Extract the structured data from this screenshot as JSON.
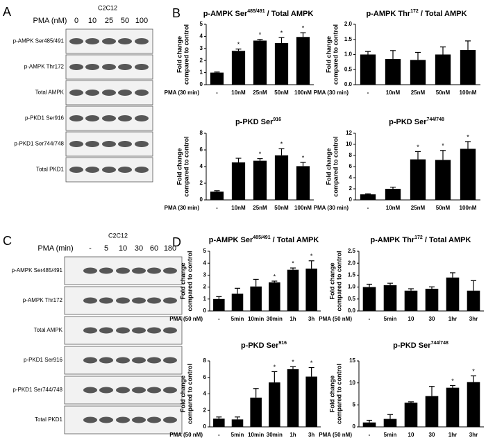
{
  "panels": {
    "a": "A",
    "b": "B",
    "c": "C",
    "d": "D"
  },
  "blots": [
    {
      "cell": "C2C12",
      "treatment": "PMA (nM)",
      "lanes": [
        "0",
        "10",
        "25",
        "50",
        "100"
      ],
      "rows": [
        "p-AMPK Ser485/491",
        "p-AMPK Thr172",
        "Total AMPK",
        "p-PKD1 Ser916",
        "p-PKD1 Ser744/748",
        "Total PKD1"
      ]
    },
    {
      "cell": "C2C12",
      "treatment": "PMA (min)",
      "lanes": [
        "-",
        "5",
        "10",
        "30",
        "60",
        "180"
      ],
      "rows": [
        "p-AMPK Ser485/491",
        "p-AMPK Thr172",
        "Total AMPK",
        "p-PKD1 Ser916",
        "p-PKD1 Ser744/748",
        "Total PKD1"
      ]
    }
  ],
  "chart_data": [
    {
      "type": "bar",
      "title": [
        "p-AMPK Ser",
        "485/491",
        " / Total AMPK"
      ],
      "ylabel": [
        "Fold change",
        "compared to control"
      ],
      "xlabel": "PMA (30 min)",
      "categories": [
        "-",
        "10nM",
        "25nM",
        "50nM",
        "100nM"
      ],
      "values": [
        1.0,
        2.8,
        3.65,
        3.45,
        3.95
      ],
      "errors": [
        0.05,
        0.15,
        0.1,
        0.45,
        0.35
      ],
      "stars": [
        null,
        "*",
        "*",
        "*",
        "*"
      ],
      "color": "#000000",
      "ylim": [
        0,
        5
      ],
      "yticks": [
        0,
        1,
        2,
        3,
        4,
        5
      ]
    },
    {
      "type": "bar",
      "title": [
        "p-AMPK Thr",
        "172",
        " / Total AMPK"
      ],
      "ylabel": [
        "Fold change",
        "compared to control"
      ],
      "xlabel": "PMA (30 min)",
      "categories": [
        "-",
        "10nM",
        "25nM",
        "50nM",
        "100nM"
      ],
      "values": [
        1.0,
        0.85,
        0.82,
        1.0,
        1.15
      ],
      "errors": [
        0.1,
        0.28,
        0.25,
        0.25,
        0.3
      ],
      "color": "#000000",
      "ylim": [
        0,
        2
      ],
      "yticks": [
        {
          "value": 0,
          "label": "0.0"
        },
        0.5,
        {
          "value": 1,
          "label": "1.0"
        },
        1.5,
        {
          "value": 2,
          "label": "2.0"
        }
      ]
    },
    {
      "type": "bar",
      "title": [
        "p-PKD Ser",
        "916"
      ],
      "ylabel": [
        "Fold change",
        "compared to control"
      ],
      "xlabel": "PMA (30 min)",
      "categories": [
        "-",
        "10nM",
        "25nM",
        "50nM",
        "100nM"
      ],
      "values": [
        1.0,
        4.5,
        4.7,
        5.35,
        4.05
      ],
      "errors": [
        0.1,
        0.5,
        0.25,
        0.8,
        0.45
      ],
      "stars": [
        null,
        null,
        "*",
        "*",
        "*"
      ],
      "color": "#000000",
      "ylim": [
        0,
        8
      ],
      "yticks": [
        0,
        2,
        4,
        6,
        8
      ]
    },
    {
      "type": "bar",
      "title": [
        "p-PKD Ser",
        "744/748"
      ],
      "ylabel": [
        "Fold change",
        "compared to control"
      ],
      "xlabel": "PMA (30 min)",
      "categories": [
        "-",
        "10nM",
        "25nM",
        "50nM",
        "100nM"
      ],
      "values": [
        1.0,
        2.0,
        7.3,
        7.2,
        9.2
      ],
      "errors": [
        0.1,
        0.3,
        1.4,
        1.7,
        1.3
      ],
      "stars": [
        null,
        null,
        "*",
        "*",
        "*"
      ],
      "color": "#000000",
      "ylim": [
        0,
        12
      ],
      "yticks": [
        0,
        2,
        4,
        6,
        8,
        10,
        12
      ]
    },
    {
      "type": "bar",
      "title": [
        "p-AMPK Ser",
        "485/491",
        " / Total AMPK"
      ],
      "ylabel": [
        "Fold change",
        "compared to control"
      ],
      "xlabel": "PMA (50 nM)",
      "categories": [
        "-",
        "5min",
        "10min",
        "30min",
        "1h",
        "3h"
      ],
      "values": [
        1.0,
        1.45,
        2.05,
        2.4,
        3.45,
        3.55
      ],
      "errors": [
        0.2,
        0.45,
        0.6,
        0.1,
        0.15,
        0.65
      ],
      "stars": [
        null,
        null,
        null,
        "*",
        "*",
        "*"
      ],
      "color": "#000000",
      "ylim": [
        0,
        5
      ],
      "yticks": [
        0,
        1,
        2,
        3,
        4,
        5
      ]
    },
    {
      "type": "bar",
      "title": [
        "p-AMPK Thr",
        "172",
        " / Total AMPK"
      ],
      "ylabel": [
        "Fold change",
        "compared to control"
      ],
      "xlabel": "PMA (50 nM)",
      "categories": [
        "-",
        "5min",
        "10",
        "30",
        "1hr",
        "3hr"
      ],
      "values": [
        1.0,
        1.08,
        0.85,
        0.93,
        1.4,
        0.85
      ],
      "errors": [
        0.12,
        0.08,
        0.08,
        0.08,
        0.2,
        0.42
      ],
      "color": "#000000",
      "ylim": [
        0,
        2.5
      ],
      "yticks": [
        {
          "value": 0,
          "label": "0.0"
        },
        0.5,
        {
          "value": 1,
          "label": "1.0"
        },
        1.5,
        {
          "value": 2,
          "label": "2.0"
        },
        2.5
      ]
    },
    {
      "type": "bar",
      "title": [
        "p-PKD Ser",
        "916"
      ],
      "ylabel": [
        "Fold change",
        "compared to control"
      ],
      "xlabel": "PMA (50 nM)",
      "categories": [
        "-",
        "5min",
        "10min",
        "30min",
        "1h",
        "3h"
      ],
      "values": [
        1.0,
        0.9,
        3.55,
        5.4,
        7.0,
        6.1
      ],
      "errors": [
        0.2,
        0.3,
        1.1,
        1.3,
        0.3,
        1.1
      ],
      "stars": [
        null,
        null,
        null,
        "*",
        "*",
        "*"
      ],
      "color": "#000000",
      "ylim": [
        0,
        8
      ],
      "yticks": [
        0,
        2,
        4,
        6,
        8
      ]
    },
    {
      "type": "bar",
      "title": [
        "p-PKD Ser",
        "744/748"
      ],
      "ylabel": [
        "Fold change",
        "compared to control"
      ],
      "xlabel": "PMA (50 nM)",
      "categories": [
        "-",
        "5min",
        "10",
        "30",
        "1hr",
        "3hr"
      ],
      "values": [
        1.0,
        1.8,
        5.5,
        7.0,
        8.9,
        10.2
      ],
      "errors": [
        0.5,
        1.0,
        0.2,
        2.2,
        0.5,
        1.4
      ],
      "stars": [
        null,
        null,
        null,
        null,
        "*",
        "*"
      ],
      "color": "#000000",
      "ylim": [
        0,
        15
      ],
      "yticks": [
        0,
        5,
        10,
        15
      ]
    }
  ]
}
